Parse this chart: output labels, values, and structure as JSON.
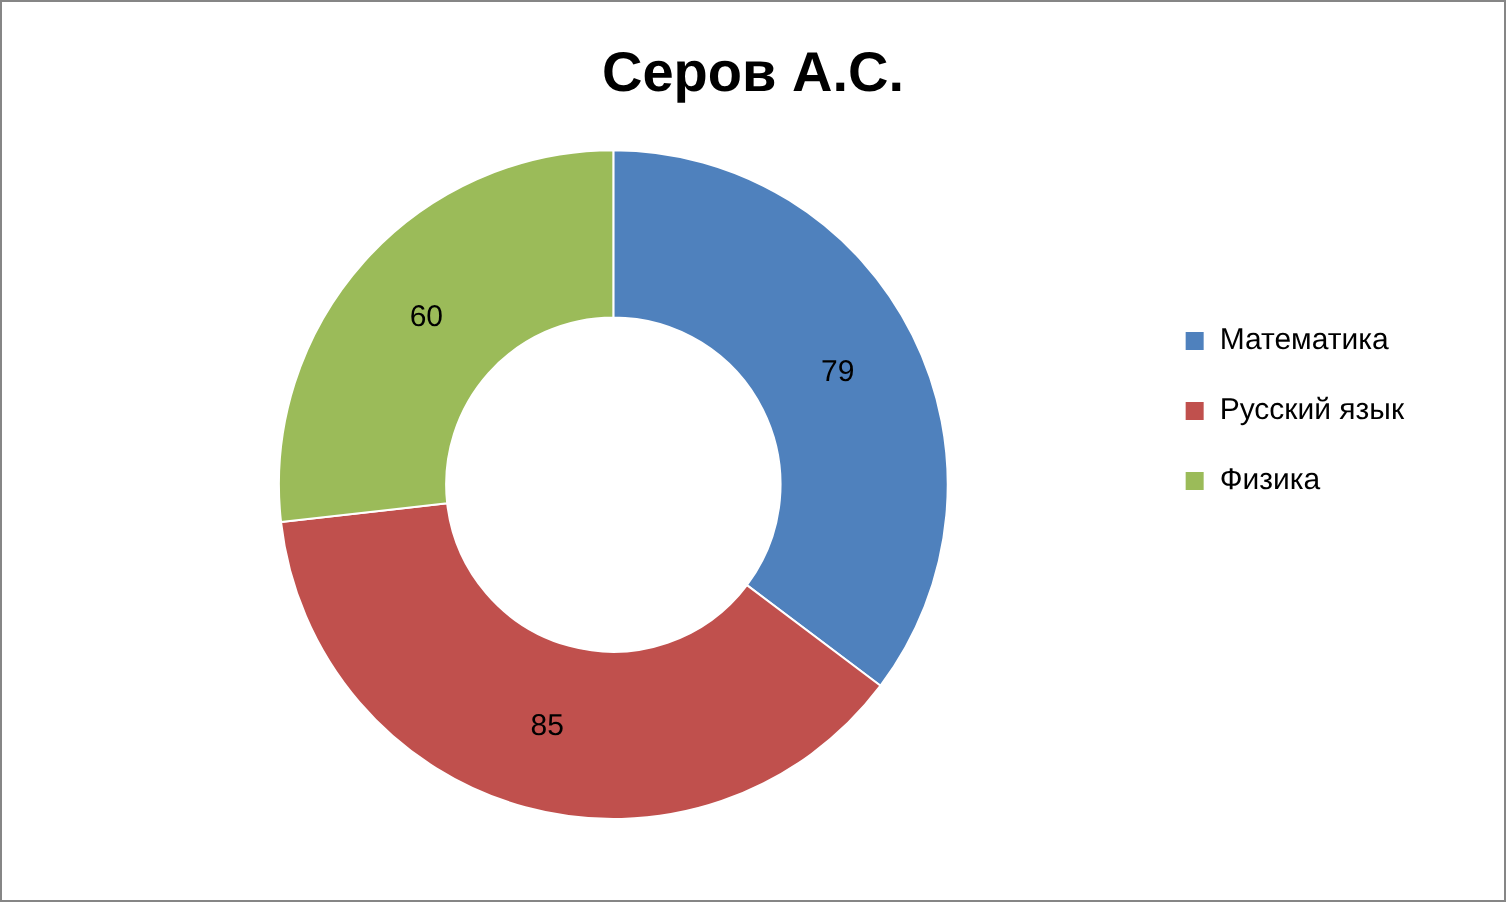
{
  "chart_data": {
    "type": "donut",
    "title": "Серов А.С.",
    "categories": [
      "Математика",
      "Русский язык",
      "Физика"
    ],
    "values": [
      79,
      85,
      60
    ],
    "colors": [
      "#4f81bd",
      "#c0504d",
      "#9bbb59"
    ],
    "data_labels": true,
    "legend": "right"
  }
}
